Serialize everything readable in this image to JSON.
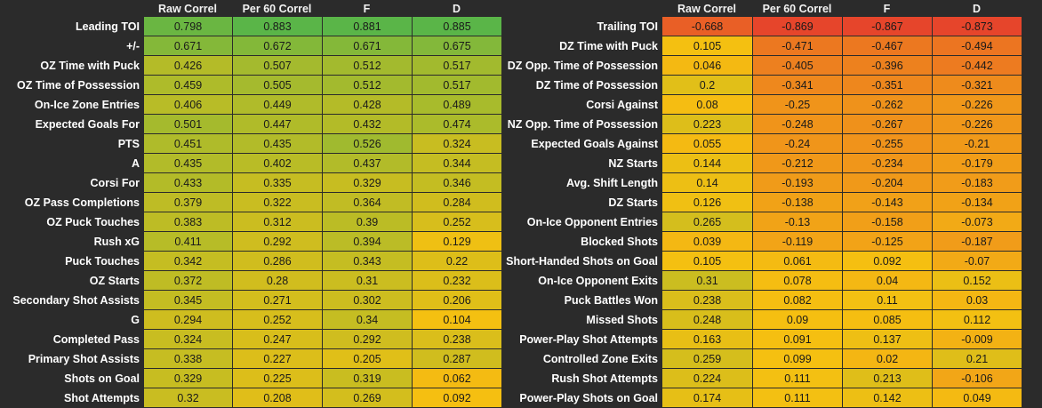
{
  "chart_data": [
    {
      "type": "heatmap",
      "columns": [
        "Raw Correl",
        "Per 60 Correl",
        "F",
        "D"
      ],
      "rows": [
        {
          "label": "Leading TOI",
          "values": [
            0.798,
            0.883,
            0.881,
            0.885
          ]
        },
        {
          "label": "+/-",
          "values": [
            0.671,
            0.672,
            0.671,
            0.675
          ]
        },
        {
          "label": "OZ Time with Puck",
          "values": [
            0.426,
            0.507,
            0.512,
            0.517
          ]
        },
        {
          "label": "OZ Time of Possession",
          "values": [
            0.459,
            0.505,
            0.512,
            0.517
          ]
        },
        {
          "label": "On-Ice Zone Entries",
          "values": [
            0.406,
            0.449,
            0.428,
            0.489
          ]
        },
        {
          "label": "Expected Goals For",
          "values": [
            0.501,
            0.447,
            0.432,
            0.474
          ]
        },
        {
          "label": "PTS",
          "values": [
            0.451,
            0.435,
            0.526,
            0.324
          ]
        },
        {
          "label": "A",
          "values": [
            0.435,
            0.402,
            0.437,
            0.344
          ]
        },
        {
          "label": "Corsi For",
          "values": [
            0.433,
            0.335,
            0.329,
            0.346
          ]
        },
        {
          "label": "OZ Pass Completions",
          "values": [
            0.379,
            0.322,
            0.364,
            0.284
          ]
        },
        {
          "label": "OZ Puck Touches",
          "values": [
            0.383,
            0.312,
            0.39,
            0.252
          ]
        },
        {
          "label": "Rush xG",
          "values": [
            0.411,
            0.292,
            0.394,
            0.129
          ]
        },
        {
          "label": "Puck Touches",
          "values": [
            0.342,
            0.286,
            0.343,
            0.22
          ]
        },
        {
          "label": "OZ Starts",
          "values": [
            0.372,
            0.28,
            0.31,
            0.232
          ]
        },
        {
          "label": "Secondary Shot Assists",
          "values": [
            0.345,
            0.271,
            0.302,
            0.206
          ]
        },
        {
          "label": "G",
          "values": [
            0.294,
            0.252,
            0.34,
            0.104
          ]
        },
        {
          "label": "Completed Pass",
          "values": [
            0.324,
            0.247,
            0.292,
            0.238
          ]
        },
        {
          "label": "Primary Shot Assists",
          "values": [
            0.338,
            0.227,
            0.205,
            0.287
          ]
        },
        {
          "label": "Shots on Goal",
          "values": [
            0.329,
            0.225,
            0.319,
            0.062
          ]
        },
        {
          "label": "Shot Attempts",
          "values": [
            0.32,
            0.208,
            0.269,
            0.092
          ]
        }
      ]
    },
    {
      "type": "heatmap",
      "columns": [
        "Raw Correl",
        "Per 60 Correl",
        "F",
        "D"
      ],
      "rows": [
        {
          "label": "Trailing TOI",
          "values": [
            -0.668,
            -0.869,
            -0.867,
            -0.873
          ]
        },
        {
          "label": "DZ Time with Puck",
          "values": [
            0.105,
            -0.471,
            -0.467,
            -0.494
          ]
        },
        {
          "label": "DZ Opp. Time of Possession",
          "values": [
            0.046,
            -0.405,
            -0.396,
            -0.442
          ]
        },
        {
          "label": "DZ Time of Possession",
          "values": [
            0.2,
            -0.341,
            -0.351,
            -0.321
          ]
        },
        {
          "label": "Corsi Against",
          "values": [
            0.08,
            -0.25,
            -0.262,
            -0.226
          ]
        },
        {
          "label": "NZ Opp. Time of Possession",
          "values": [
            0.223,
            -0.248,
            -0.267,
            -0.226
          ]
        },
        {
          "label": "Expected Goals Against",
          "values": [
            0.055,
            -0.24,
            -0.255,
            -0.21
          ]
        },
        {
          "label": "NZ Starts",
          "values": [
            0.144,
            -0.212,
            -0.234,
            -0.179
          ]
        },
        {
          "label": "Avg. Shift Length",
          "values": [
            0.14,
            -0.193,
            -0.204,
            -0.183
          ]
        },
        {
          "label": "DZ Starts",
          "values": [
            0.126,
            -0.138,
            -0.143,
            -0.134
          ]
        },
        {
          "label": "On-Ice Opponent Entries",
          "values": [
            0.265,
            -0.13,
            -0.158,
            -0.073
          ]
        },
        {
          "label": "Blocked Shots",
          "values": [
            0.039,
            -0.119,
            -0.125,
            -0.187
          ]
        },
        {
          "label": "Short-Handed Shots on Goal",
          "values": [
            0.105,
            0.061,
            0.092,
            -0.07
          ]
        },
        {
          "label": "On-Ice Opponent Exits",
          "values": [
            0.31,
            0.078,
            0.04,
            0.152
          ]
        },
        {
          "label": "Puck Battles Won",
          "values": [
            0.238,
            0.082,
            0.11,
            0.03
          ]
        },
        {
          "label": "Missed Shots",
          "values": [
            0.248,
            0.09,
            0.085,
            0.112
          ]
        },
        {
          "label": "Power-Play Shot Attempts",
          "values": [
            0.163,
            0.091,
            0.137,
            -0.009
          ]
        },
        {
          "label": "Controlled Zone Exits",
          "values": [
            0.259,
            0.099,
            0.02,
            0.21
          ]
        },
        {
          "label": "Rush Shot Attempts",
          "values": [
            0.224,
            0.111,
            0.213,
            -0.106
          ]
        },
        {
          "label": "Power-Play Shots on Goal",
          "values": [
            0.174,
            0.111,
            0.142,
            0.049
          ]
        }
      ]
    }
  ],
  "colors": {
    "background": "#2b2b2b",
    "scale_high": "#5ab548",
    "scale_mid": "#f5c011",
    "scale_low": "#e6452b"
  }
}
